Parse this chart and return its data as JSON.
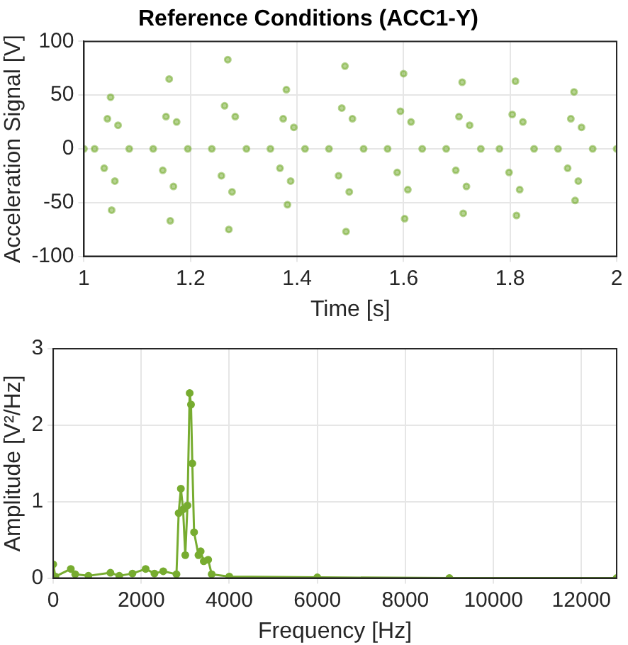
{
  "chart_data": [
    {
      "type": "scatter",
      "title": "Reference Conditions (ACC1-Y)",
      "xlabel": "Time [s]",
      "ylabel": "Acceleration Signal [V]",
      "marker": "circle",
      "grid": true,
      "xlim": [
        1,
        2
      ],
      "xticks": [
        1,
        1.2,
        1.4,
        1.6,
        1.8,
        2
      ],
      "ylim": [
        -100,
        100
      ],
      "yticks": [
        -100,
        -50,
        0,
        50,
        100
      ],
      "series": [
        {
          "color": "#77ac30",
          "x": [
            1.0,
            1.02,
            1.038,
            1.044,
            1.05,
            1.052,
            1.058,
            1.064,
            1.085,
            1.13,
            1.148,
            1.154,
            1.16,
            1.162,
            1.168,
            1.174,
            1.195,
            1.24,
            1.258,
            1.264,
            1.27,
            1.272,
            1.278,
            1.284,
            1.305,
            1.35,
            1.368,
            1.374,
            1.38,
            1.382,
            1.388,
            1.394,
            1.415,
            1.46,
            1.478,
            1.484,
            1.49,
            1.492,
            1.498,
            1.504,
            1.525,
            1.57,
            1.588,
            1.594,
            1.6,
            1.602,
            1.608,
            1.614,
            1.635,
            1.68,
            1.698,
            1.704,
            1.71,
            1.712,
            1.718,
            1.724,
            1.745,
            1.78,
            1.798,
            1.804,
            1.81,
            1.812,
            1.818,
            1.824,
            1.845,
            1.89,
            1.908,
            1.914,
            1.92,
            1.922,
            1.928,
            1.934,
            1.955,
            2.0
          ],
          "values": [
            0,
            0,
            -18,
            28,
            48,
            -57,
            -30,
            22,
            0,
            0,
            -20,
            30,
            65,
            -67,
            -35,
            25,
            0,
            0,
            -25,
            40,
            83,
            -75,
            -40,
            30,
            0,
            0,
            -18,
            28,
            55,
            -52,
            -30,
            20,
            0,
            0,
            -25,
            38,
            77,
            -77,
            -40,
            28,
            0,
            0,
            -22,
            35,
            70,
            -65,
            -38,
            25,
            0,
            0,
            -20,
            30,
            62,
            -60,
            -35,
            22,
            0,
            0,
            -22,
            32,
            63,
            -62,
            -38,
            25,
            0,
            0,
            -18,
            28,
            53,
            -48,
            -30,
            20,
            0,
            0
          ]
        }
      ]
    },
    {
      "type": "line",
      "xlabel": "Frequency [Hz]",
      "ylabel": "Amplitude [V²/Hz]",
      "marker": "circle",
      "grid": true,
      "xlim": [
        0,
        12800
      ],
      "xticks": [
        0,
        2000,
        4000,
        6000,
        8000,
        10000,
        12000
      ],
      "ylim": [
        0,
        3
      ],
      "yticks": [
        0,
        1,
        2,
        3
      ],
      "series": [
        {
          "color": "#77ac30",
          "x": [
            0,
            50,
            400,
            500,
            800,
            1300,
            1500,
            1800,
            2100,
            2300,
            2500,
            2800,
            2850,
            2900,
            2950,
            3000,
            3050,
            3100,
            3130,
            3160,
            3200,
            3300,
            3350,
            3420,
            3520,
            3600,
            4000,
            6000,
            9000,
            12800
          ],
          "values": [
            0.18,
            0.02,
            0.12,
            0.05,
            0.03,
            0.07,
            0.03,
            0.06,
            0.12,
            0.06,
            0.09,
            0.05,
            0.85,
            1.17,
            0.9,
            0.3,
            0.95,
            2.42,
            2.27,
            1.5,
            0.6,
            0.3,
            0.35,
            0.22,
            0.24,
            0.05,
            0.02,
            0.01,
            0,
            0
          ]
        }
      ]
    }
  ]
}
